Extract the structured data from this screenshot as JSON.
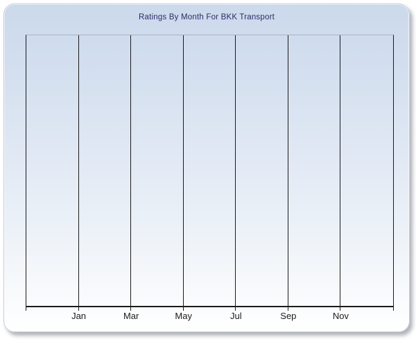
{
  "chart_data": {
    "type": "line",
    "title": "Ratings By Month For BKK Transport",
    "xlabel": "",
    "ylabel": "",
    "x_tick_labels": [
      "Jan",
      "Mar",
      "May",
      "Jul",
      "Sep",
      "Nov"
    ],
    "categories": [
      "Jan",
      "Mar",
      "May",
      "Jul",
      "Sep",
      "Nov"
    ],
    "series": [],
    "values": [],
    "plot_empty": true,
    "grid": "vertical-only",
    "legend": "none",
    "y_axis_tick_labels": "none",
    "colors": {
      "title_text": "#2c2b66",
      "gridline": "#1a1a1a",
      "axis_line": "#1a1a1a",
      "plot_top_border": "#a9b1c0",
      "panel_gradient_top": "#cbd9ec",
      "panel_gradient_bottom": "#ffffff",
      "panel_border": "#c9cdd6",
      "tick_label_text": "#1b1b1b"
    }
  }
}
